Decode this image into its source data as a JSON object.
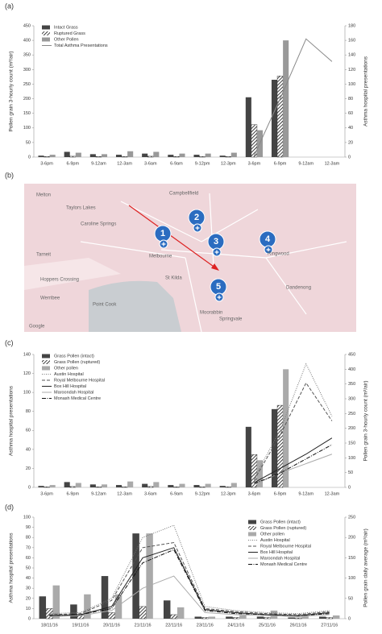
{
  "chart_data": [
    {
      "type": "bar",
      "panel_label": "(a)",
      "ylabel": "Pollen grain 3-hourly count (m³/air)",
      "y2label": "Asthma hospital presentations",
      "legend": "upper left",
      "categories": [
        "3-6pm",
        "6-9pm",
        "9-12am",
        "12-3am",
        "3-6am",
        "6-9am",
        "9-12pm",
        "12-3pm",
        "3-6pm",
        "6-9pm",
        "9-12am",
        "12-3am"
      ],
      "ylim": [
        0,
        450
      ],
      "yticks": [
        0,
        50,
        100,
        150,
        200,
        250,
        300,
        350,
        400,
        450
      ],
      "y2lim": [
        0,
        180
      ],
      "y2ticks": [
        0,
        20,
        40,
        60,
        80,
        100,
        120,
        140,
        160,
        180
      ],
      "series": [
        {
          "name": "Intact Grass",
          "type": "bar",
          "color": "#444444",
          "pattern": "solid",
          "values": [
            5,
            18,
            10,
            8,
            12,
            8,
            8,
            5,
            205,
            265,
            null,
            null
          ]
        },
        {
          "name": "Ruptured Grass",
          "type": "bar",
          "color": "#222222",
          "pattern": "hatch",
          "values": [
            2,
            3,
            2,
            2,
            3,
            2,
            2,
            2,
            111,
            278,
            null,
            null
          ]
        },
        {
          "name": "Other Pollen",
          "type": "bar",
          "color": "#999999",
          "pattern": "solid",
          "values": [
            8,
            15,
            10,
            20,
            18,
            12,
            12,
            15,
            92,
            400,
            null,
            null
          ]
        },
        {
          "name": "Total Asthma Presentations",
          "type": "line",
          "axis": "y2",
          "color": "#888888",
          "style": "solid",
          "values": [
            null,
            null,
            null,
            null,
            null,
            null,
            null,
            null,
            2,
            80,
            162,
            131
          ]
        }
      ]
    },
    {
      "type": "bar",
      "panel_label": "(c)",
      "ylabel": "Asthma hospital presentations",
      "y2label": "Pollen grain 3-hourly count (m³/air)",
      "legend": "upper left",
      "categories": [
        "3-6pm",
        "6-9pm",
        "9-12am",
        "12-3am",
        "3-6am",
        "6-9am",
        "9-12pm",
        "12-3pm",
        "3-6pm",
        "6-9pm",
        "9-12am",
        "12-3am"
      ],
      "ylim": [
        0,
        140
      ],
      "yticks": [
        0,
        20,
        40,
        60,
        80,
        100,
        120,
        140
      ],
      "y2lim": [
        0,
        450
      ],
      "y2ticks": [
        0,
        50,
        100,
        150,
        200,
        250,
        300,
        350,
        400,
        450
      ],
      "series": [
        {
          "name": "Grass Pollen (intact)",
          "type": "bar",
          "axis": "y2",
          "color": "#444444",
          "pattern": "solid",
          "values": [
            5,
            18,
            10,
            8,
            12,
            8,
            8,
            5,
            205,
            265,
            null,
            null
          ]
        },
        {
          "name": "Grass Pollen (ruptured)",
          "type": "bar",
          "axis": "y2",
          "color": "#222222",
          "pattern": "hatch",
          "values": [
            2,
            3,
            2,
            2,
            3,
            2,
            2,
            2,
            111,
            278,
            null,
            null
          ]
        },
        {
          "name": "Other pollen",
          "type": "bar",
          "axis": "y2",
          "color": "#aaaaaa",
          "pattern": "solid",
          "values": [
            8,
            15,
            10,
            20,
            18,
            12,
            12,
            15,
            92,
            400,
            null,
            null
          ]
        },
        {
          "name": "Austin Hospital",
          "type": "line",
          "color": "#777777",
          "style": "dotted",
          "values": [
            null,
            null,
            null,
            null,
            null,
            null,
            null,
            null,
            10,
            60,
            130,
            75
          ]
        },
        {
          "name": "Royal Melbourne Hospital",
          "type": "line",
          "color": "#555555",
          "style": "dashed",
          "values": [
            null,
            null,
            null,
            null,
            null,
            null,
            null,
            null,
            8,
            55,
            110,
            70
          ]
        },
        {
          "name": "Box Hill Hospital",
          "type": "line",
          "color": "#222222",
          "style": "solid",
          "values": [
            null,
            null,
            null,
            null,
            null,
            null,
            null,
            null,
            5,
            20,
            35,
            52
          ]
        },
        {
          "name": "Maroondah Hospital",
          "type": "line",
          "color": "#aaaaaa",
          "style": "solid",
          "values": [
            null,
            null,
            null,
            null,
            null,
            null,
            null,
            null,
            3,
            15,
            25,
            35
          ]
        },
        {
          "name": "Monash Medical Centre",
          "type": "line",
          "color": "#111111",
          "style": "dashdot",
          "values": [
            null,
            null,
            null,
            null,
            null,
            null,
            null,
            null,
            4,
            15,
            30,
            45
          ]
        }
      ]
    },
    {
      "type": "bar",
      "panel_label": "(d)",
      "ylabel": "Asthma hospital presentations",
      "y2label": "Pollen grain daily average (m³/air)",
      "legend": "center right",
      "categories": [
        "18/11/16",
        "19/11/16",
        "20/11/16",
        "21/11/16",
        "22/11/16",
        "23/11/16",
        "24/11/16",
        "25/11/16",
        "26/11/16",
        "27/11/16"
      ],
      "ylim": [
        0,
        100
      ],
      "yticks": [
        0,
        10,
        20,
        30,
        40,
        50,
        60,
        70,
        80,
        90,
        100
      ],
      "y2lim": [
        0,
        250
      ],
      "y2ticks": [
        0,
        50,
        100,
        150,
        200,
        250
      ],
      "series": [
        {
          "name": "Grass Pollen (intact)",
          "type": "bar",
          "axis": "y2",
          "color": "#444444",
          "pattern": "solid",
          "values": [
            55,
            35,
            105,
            210,
            45,
            5,
            5,
            5,
            3,
            5
          ]
        },
        {
          "name": "Grass Pollen (ruptured)",
          "type": "bar",
          "axis": "y2",
          "color": "#222222",
          "pattern": "hatch",
          "values": [
            25,
            10,
            15,
            30,
            10,
            3,
            3,
            3,
            2,
            3
          ]
        },
        {
          "name": "Other pollen",
          "type": "bar",
          "axis": "y2",
          "color": "#aaaaaa",
          "pattern": "solid",
          "values": [
            82,
            60,
            60,
            210,
            28,
            5,
            8,
            20,
            10,
            8
          ]
        },
        {
          "name": "Austin Hospital",
          "type": "line",
          "color": "#777777",
          "style": "dotted",
          "values": [
            5,
            6,
            20,
            80,
            92,
            12,
            8,
            6,
            5,
            8
          ]
        },
        {
          "name": "Royal Melbourne Hospital",
          "type": "line",
          "color": "#555555",
          "style": "dashed",
          "values": [
            4,
            5,
            18,
            70,
            75,
            10,
            7,
            5,
            4,
            7
          ]
        },
        {
          "name": "Box Hill Hospital",
          "type": "line",
          "color": "#222222",
          "style": "solid",
          "values": [
            3,
            4,
            12,
            60,
            70,
            9,
            6,
            4,
            3,
            6
          ]
        },
        {
          "name": "Maroondah Hospital",
          "type": "line",
          "color": "#aaaaaa",
          "style": "solid",
          "values": [
            2,
            3,
            8,
            30,
            42,
            6,
            4,
            3,
            2,
            4
          ]
        },
        {
          "name": "Monash Medical Centre",
          "type": "line",
          "color": "#111111",
          "style": "dashdot",
          "values": [
            3,
            4,
            10,
            55,
            68,
            8,
            5,
            4,
            3,
            5
          ]
        }
      ]
    }
  ],
  "map": {
    "panel_label": "(b)",
    "markers": [
      "1",
      "2",
      "3",
      "4",
      "5"
    ],
    "places": [
      "Melton",
      "Taylors Lakes",
      "Campbellfield",
      "Caroline Springs",
      "Tarneit",
      "Hoppers Crossing",
      "Werribee",
      "Point Cook",
      "Melbourne",
      "St Kilda",
      "Moorabbin",
      "Springvale",
      "Ringwood",
      "Dandenong",
      "Google"
    ]
  }
}
